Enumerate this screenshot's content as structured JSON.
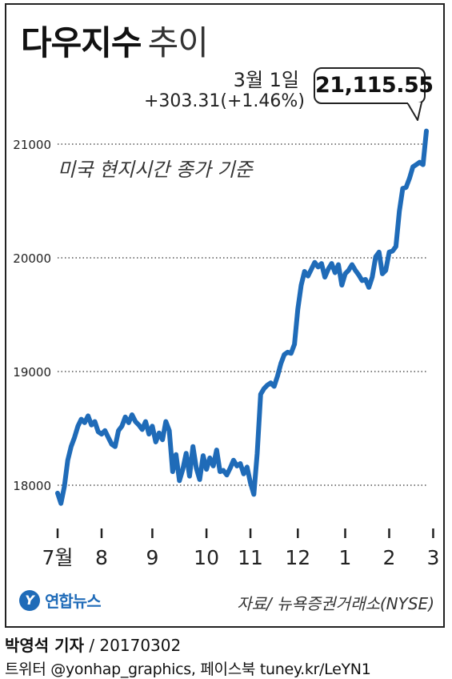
{
  "title": {
    "main": "다우지수",
    "sub": "추이"
  },
  "annotation": {
    "date": "3월 1일",
    "change": "+303.31(+1.46%)",
    "value": "21,115.55",
    "note": "미국 현지시간 종가 기준"
  },
  "colors": {
    "line": "#1f6bb8",
    "grid": "#333333",
    "text": "#222222",
    "brand": "#1f6bb8"
  },
  "brand": {
    "logo_text": "연합뉴스",
    "logo_icon": "yonhap-logo-icon"
  },
  "source": "자료/ 뉴욕증권거래소(NYSE)",
  "credit": {
    "reporter": "박영석 기자",
    "date": " / 20170302"
  },
  "sns": "트위터 @yonhap_graphics, 페이스북 tuney.kr/LeYN1",
  "chart_data": {
    "type": "line",
    "title": "다우지수 추이",
    "ylim": [
      17600,
      21200
    ],
    "yticks": [
      18000,
      19000,
      20000,
      21000
    ],
    "ytick_labels": [
      "18000",
      "19000",
      "20000",
      "21000"
    ],
    "grid": "horizontal dotted",
    "xtick_labels": [
      "7월",
      "8",
      "9",
      "10",
      "11",
      "12",
      "1",
      "2",
      "3"
    ],
    "xtick_index": [
      0,
      13,
      28,
      44,
      57,
      71,
      85,
      98,
      111
    ],
    "series": [
      {
        "values": [
          17930,
          17840,
          17990,
          18220,
          18340,
          18420,
          18520,
          18580,
          18550,
          18610,
          18530,
          18560,
          18470,
          18450,
          18480,
          18420,
          18360,
          18340,
          18480,
          18520,
          18600,
          18550,
          18620,
          18560,
          18530,
          18490,
          18560,
          18450,
          18520,
          18380,
          18460,
          18400,
          18560,
          18480,
          18120,
          18270,
          18040,
          18140,
          18280,
          18080,
          18340,
          18150,
          18050,
          18260,
          18140,
          18240,
          18170,
          18310,
          18120,
          18130,
          18090,
          18150,
          18220,
          18170,
          18190,
          18100,
          18160,
          18020,
          17920,
          18280,
          18800,
          18850,
          18880,
          18900,
          18870,
          18960,
          19070,
          19150,
          19170,
          19160,
          19240,
          19550,
          19760,
          19880,
          19840,
          19900,
          19960,
          19920,
          19950,
          19830,
          19900,
          19950,
          19870,
          19940,
          19760,
          19860,
          19890,
          19940,
          19890,
          19850,
          19800,
          19810,
          19740,
          19830,
          20010,
          20050,
          19860,
          19890,
          20050,
          20060,
          20100,
          20410,
          20610,
          20620,
          20700,
          20800,
          20820,
          20840,
          20820,
          21115.55
        ],
        "last": 21115.55
      }
    ]
  }
}
